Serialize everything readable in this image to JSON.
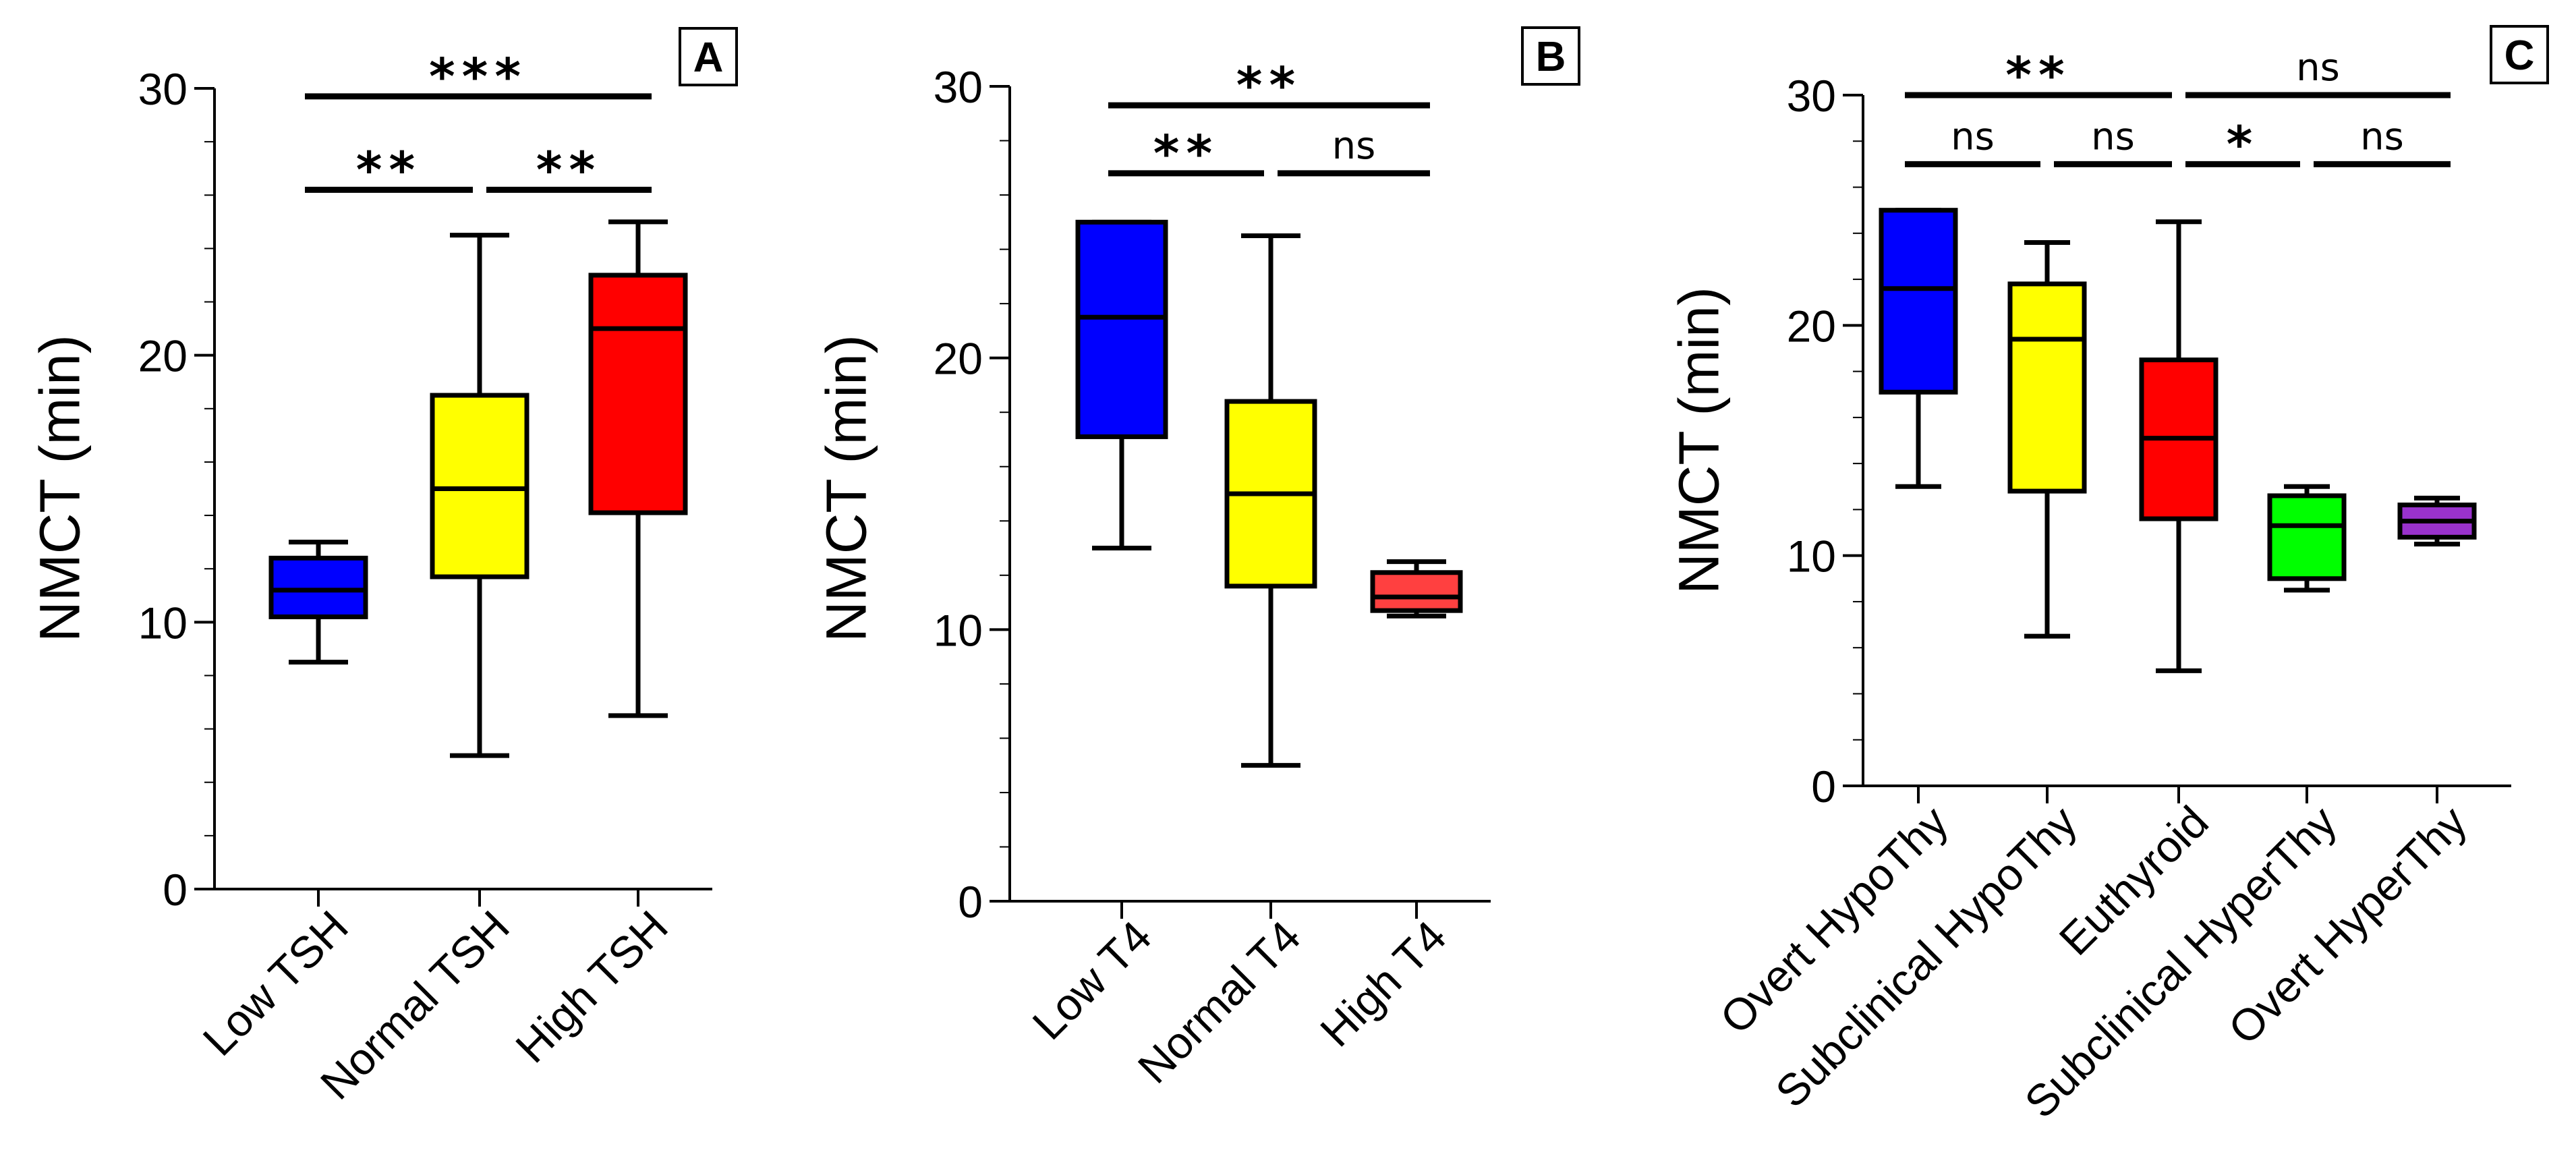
{
  "figure": {
    "description_free": true
  },
  "chart_data": [
    {
      "type": "box",
      "panel_label": "A",
      "ylabel": "NMCT (min)",
      "xlabel": "",
      "ylim": [
        0,
        30
      ],
      "yticks": [
        0,
        10,
        20,
        30
      ],
      "categories": [
        "Low TSH",
        "Normal TSH",
        "High TSH"
      ],
      "colors": [
        "#0000ff",
        "#ffff00",
        "#ff0000"
      ],
      "boxes": [
        {
          "min": 8.5,
          "q1": 10.2,
          "median": 11.2,
          "q3": 12.4,
          "max": 13
        },
        {
          "min": 5,
          "q1": 11.7,
          "median": 15,
          "q3": 18.5,
          "max": 24.5
        },
        {
          "min": 6.5,
          "q1": 14.1,
          "median": 21,
          "q3": 23,
          "max": 25
        }
      ],
      "significance": [
        {
          "from": 0,
          "to": 2,
          "label": "***",
          "y": 29.7
        },
        {
          "from": 0,
          "to": 1,
          "label": "**",
          "y": 26.2
        },
        {
          "from": 1,
          "to": 2,
          "label": "**",
          "y": 26.2
        }
      ]
    },
    {
      "type": "box",
      "panel_label": "B",
      "ylabel": "NMCT (min)",
      "xlabel": "",
      "ylim": [
        0,
        30
      ],
      "yticks": [
        0,
        10,
        20,
        30
      ],
      "categories": [
        "Low T4",
        "Normal T4",
        "High T4"
      ],
      "colors": [
        "#0000ff",
        "#ffff00",
        "#ff4040"
      ],
      "boxes": [
        {
          "min": 13,
          "q1": 17.1,
          "median": 21.5,
          "q3": 25,
          "max": 25
        },
        {
          "min": 5,
          "q1": 11.6,
          "median": 15,
          "q3": 18.4,
          "max": 24.5
        },
        {
          "min": 10.5,
          "q1": 10.7,
          "median": 11.2,
          "q3": 12.1,
          "max": 12.5
        }
      ],
      "significance": [
        {
          "from": 0,
          "to": 2,
          "label": "**",
          "y": 29.3
        },
        {
          "from": 0,
          "to": 1,
          "label": "**",
          "y": 26.8
        },
        {
          "from": 1,
          "to": 2,
          "label": "ns",
          "y": 26.8
        }
      ]
    },
    {
      "type": "box",
      "panel_label": "C",
      "ylabel": "NMCT (min)",
      "xlabel": "",
      "ylim": [
        0,
        30
      ],
      "yticks": [
        0,
        10,
        20,
        30
      ],
      "categories": [
        "Overt HypoThy",
        "Subclinical HypoThy",
        "Euthyroid",
        "Subclinical HyperThy",
        "Overt HyperThy"
      ],
      "colors": [
        "#0000ff",
        "#ffff00",
        "#ff0000",
        "#00ff00",
        "#9932cc"
      ],
      "boxes": [
        {
          "min": 13,
          "q1": 17.1,
          "median": 21.6,
          "q3": 25,
          "max": 25
        },
        {
          "min": 6.5,
          "q1": 12.8,
          "median": 19.4,
          "q3": 21.8,
          "max": 23.6
        },
        {
          "min": 5,
          "q1": 11.6,
          "median": 15.1,
          "q3": 18.5,
          "max": 24.5
        },
        {
          "min": 8.5,
          "q1": 9,
          "median": 11.3,
          "q3": 12.6,
          "max": 13
        },
        {
          "min": 10.5,
          "q1": 10.8,
          "median": 11.5,
          "q3": 12.2,
          "max": 12.5
        }
      ],
      "significance": [
        {
          "from": 0,
          "to": 2,
          "label": "**",
          "y": 30
        },
        {
          "from": 2,
          "to": 4,
          "label": "ns",
          "y": 30
        },
        {
          "from": 0,
          "to": 1,
          "label": "ns",
          "y": 27
        },
        {
          "from": 1,
          "to": 2,
          "label": "ns",
          "y": 27
        },
        {
          "from": 2,
          "to": 3,
          "label": "*",
          "y": 27
        },
        {
          "from": 3,
          "to": 4,
          "label": "ns",
          "y": 27
        }
      ]
    }
  ]
}
